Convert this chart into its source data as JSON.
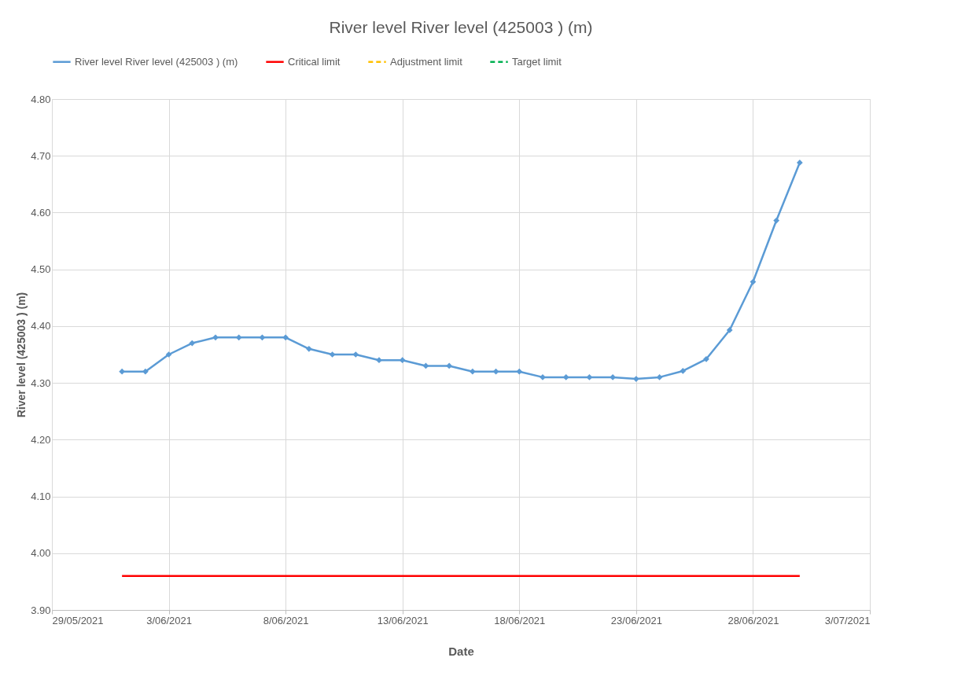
{
  "chart_data": {
    "type": "line",
    "title": "River level River level (425003 ) (m)",
    "xlabel": "Date",
    "ylabel": "River level (425003 ) (m)",
    "x": [
      "2021-06-01",
      "2021-06-02",
      "2021-06-03",
      "2021-06-04",
      "2021-06-05",
      "2021-06-06",
      "2021-06-07",
      "2021-06-08",
      "2021-06-09",
      "2021-06-10",
      "2021-06-11",
      "2021-06-12",
      "2021-06-13",
      "2021-06-14",
      "2021-06-15",
      "2021-06-16",
      "2021-06-17",
      "2021-06-18",
      "2021-06-19",
      "2021-06-20",
      "2021-06-21",
      "2021-06-22",
      "2021-06-23",
      "2021-06-24",
      "2021-06-25",
      "2021-06-26",
      "2021-06-27",
      "2021-06-28",
      "2021-06-29",
      "2021-06-30"
    ],
    "series": [
      {
        "name": "River level River level (425003 ) (m)",
        "color": "#5b9bd5",
        "marker": "diamond",
        "line_style": "solid",
        "values": [
          4.32,
          4.32,
          4.35,
          4.37,
          4.38,
          4.38,
          4.38,
          4.38,
          4.36,
          4.35,
          4.35,
          4.34,
          4.34,
          4.33,
          4.33,
          4.32,
          4.32,
          4.32,
          4.31,
          4.31,
          4.31,
          4.31,
          4.307,
          4.31,
          4.321,
          4.342,
          4.393,
          4.478,
          4.586,
          4.688
        ]
      },
      {
        "name": "Critical limit",
        "color": "#ff0000",
        "marker": "none",
        "line_style": "solid",
        "values": [
          3.96,
          3.96,
          3.96,
          3.96,
          3.96,
          3.96,
          3.96,
          3.96,
          3.96,
          3.96,
          3.96,
          3.96,
          3.96,
          3.96,
          3.96,
          3.96,
          3.96,
          3.96,
          3.96,
          3.96,
          3.96,
          3.96,
          3.96,
          3.96,
          3.96,
          3.96,
          3.96,
          3.96,
          3.96,
          3.96
        ]
      },
      {
        "name": "Adjustment limit",
        "color": "#ffc000",
        "marker": "none",
        "line_style": "dashed",
        "values": [
          null,
          null,
          null,
          null,
          null,
          null,
          null,
          null,
          null,
          null,
          null,
          null,
          null,
          null,
          null,
          null,
          null,
          null,
          null,
          null,
          null,
          null,
          null,
          null,
          null,
          null,
          null,
          null,
          null,
          null
        ]
      },
      {
        "name": "Target limit",
        "color": "#00b050",
        "marker": "none",
        "line_style": "dashed",
        "values": [
          null,
          null,
          null,
          null,
          null,
          null,
          null,
          null,
          null,
          null,
          null,
          null,
          null,
          null,
          null,
          null,
          null,
          null,
          null,
          null,
          null,
          null,
          null,
          null,
          null,
          null,
          null,
          null,
          null,
          null
        ]
      }
    ],
    "xlim": [
      "2021-05-29",
      "2021-07-03"
    ],
    "xticks": [
      {
        "value": "2021-05-29",
        "label": "29/05/2021"
      },
      {
        "value": "2021-06-03",
        "label": "3/06/2021"
      },
      {
        "value": "2021-06-08",
        "label": "8/06/2021"
      },
      {
        "value": "2021-06-13",
        "label": "13/06/2021"
      },
      {
        "value": "2021-06-18",
        "label": "18/06/2021"
      },
      {
        "value": "2021-06-23",
        "label": "23/06/2021"
      },
      {
        "value": "2021-06-28",
        "label": "28/06/2021"
      },
      {
        "value": "2021-07-03",
        "label": "3/07/2021"
      }
    ],
    "ylim": [
      3.9,
      4.8
    ],
    "yticks": [
      {
        "value": 3.9,
        "label": "3.90"
      },
      {
        "value": 4.0,
        "label": "4.00"
      },
      {
        "value": 4.1,
        "label": "4.10"
      },
      {
        "value": 4.2,
        "label": "4.20"
      },
      {
        "value": 4.3,
        "label": "4.30"
      },
      {
        "value": 4.4,
        "label": "4.40"
      },
      {
        "value": 4.5,
        "label": "4.50"
      },
      {
        "value": 4.6,
        "label": "4.60"
      },
      {
        "value": 4.7,
        "label": "4.70"
      },
      {
        "value": 4.8,
        "label": "4.80"
      }
    ],
    "grid": true,
    "legend": "top left"
  }
}
